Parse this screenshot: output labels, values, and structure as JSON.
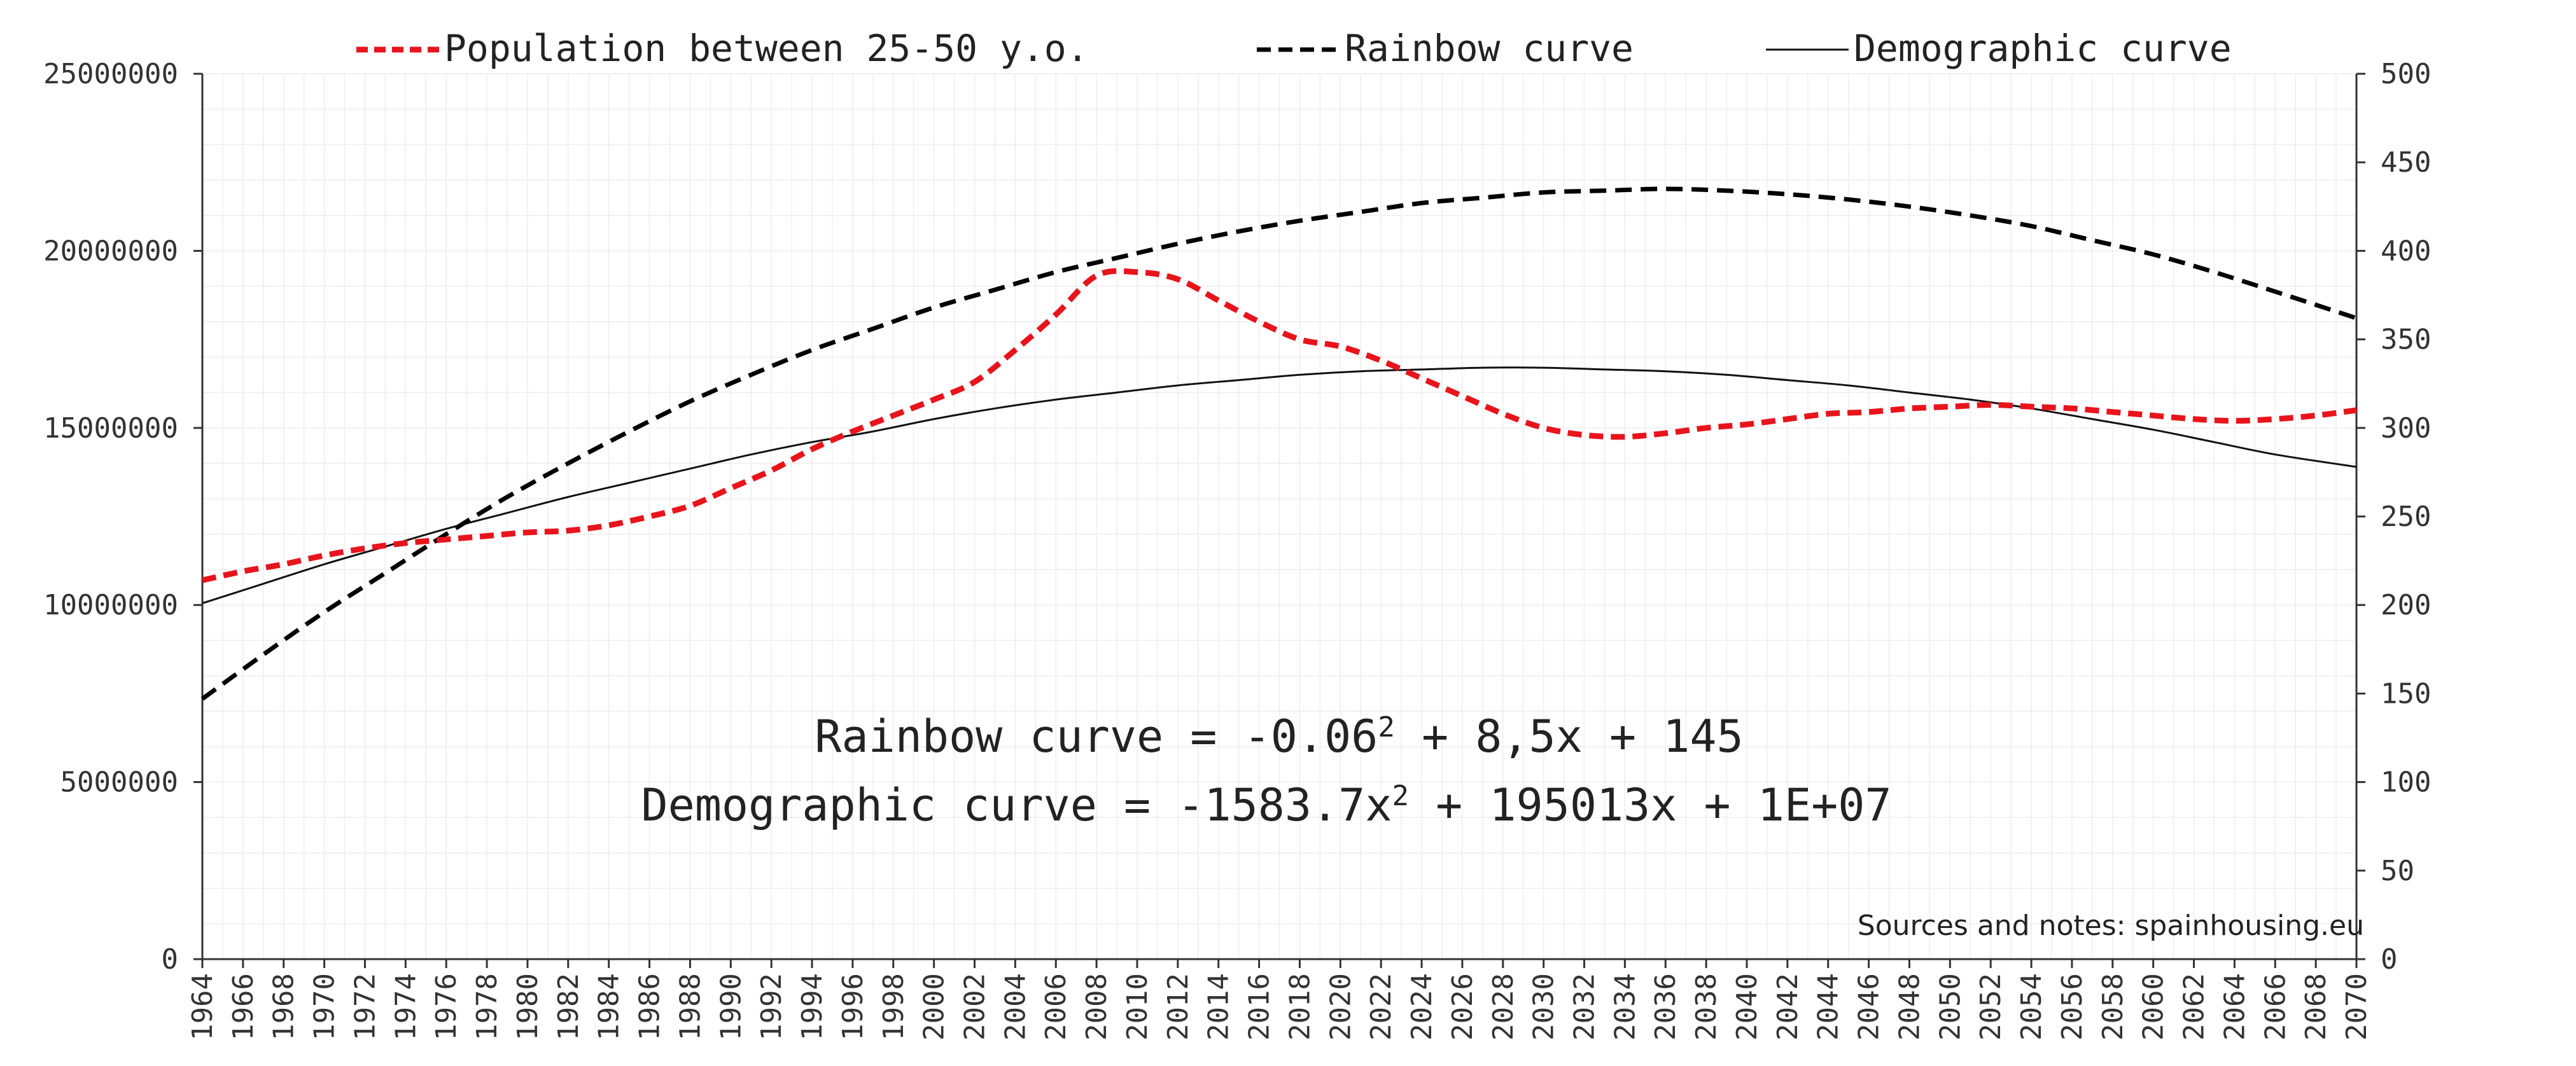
{
  "chart_data": {
    "type": "line",
    "title": "",
    "xlabel": "",
    "ylabel": "",
    "y2label": "",
    "xlim": [
      1964,
      2070
    ],
    "ylim": [
      0,
      25000000
    ],
    "y2lim": [
      0,
      500
    ],
    "grid": true,
    "legend_position": "top",
    "x_ticks": [
      1964,
      1966,
      1968,
      1970,
      1972,
      1974,
      1976,
      1978,
      1980,
      1982,
      1984,
      1986,
      1988,
      1990,
      1992,
      1994,
      1996,
      1998,
      2000,
      2002,
      2004,
      2006,
      2008,
      2010,
      2012,
      2014,
      2016,
      2018,
      2020,
      2022,
      2024,
      2026,
      2028,
      2030,
      2032,
      2034,
      2036,
      2038,
      2040,
      2042,
      2044,
      2046,
      2048,
      2050,
      2052,
      2054,
      2056,
      2058,
      2060,
      2062,
      2064,
      2066,
      2068,
      2070
    ],
    "y_ticks": [
      "0",
      "5000000",
      "10000000",
      "15000000",
      "20000000",
      "25000000"
    ],
    "y2_ticks": [
      "0",
      "50",
      "100",
      "150",
      "200",
      "250",
      "300",
      "350",
      "400",
      "450",
      "500"
    ],
    "series": [
      {
        "name": "Population between 25-50 y.o.",
        "axis": "left",
        "color": "#e8141c",
        "style": "dashed",
        "x": [
          1964,
          1966,
          1968,
          1970,
          1972,
          1974,
          1976,
          1978,
          1980,
          1982,
          1984,
          1986,
          1988,
          1990,
          1992,
          1994,
          1996,
          1998,
          2000,
          2002,
          2004,
          2006,
          2008,
          2010,
          2012,
          2014,
          2016,
          2018,
          2020,
          2022,
          2024,
          2026,
          2028,
          2030,
          2032,
          2034,
          2036,
          2038,
          2040,
          2042,
          2044,
          2046,
          2048,
          2050,
          2052,
          2054,
          2056,
          2058,
          2060,
          2062,
          2064,
          2066,
          2068,
          2070
        ],
        "values": [
          10700000,
          10950000,
          11150000,
          11400000,
          11600000,
          11750000,
          11850000,
          11950000,
          12050000,
          12100000,
          12250000,
          12500000,
          12800000,
          13300000,
          13800000,
          14400000,
          14900000,
          15350000,
          15800000,
          16300000,
          17200000,
          18200000,
          19300000,
          19400000,
          19200000,
          18600000,
          18000000,
          17500000,
          17300000,
          16900000,
          16400000,
          15900000,
          15400000,
          15000000,
          14800000,
          14750000,
          14850000,
          15000000,
          15100000,
          15250000,
          15400000,
          15450000,
          15550000,
          15600000,
          15650000,
          15600000,
          15550000,
          15450000,
          15350000,
          15250000,
          15200000,
          15250000,
          15350000,
          15500000
        ]
      },
      {
        "name": "Rainbow curve",
        "axis": "right",
        "color": "#000000",
        "style": "dashed",
        "x": [
          1964,
          1967,
          1970,
          1973,
          1976,
          1979,
          1982,
          1985,
          1988,
          1991,
          1994,
          1997,
          2000,
          2003,
          2006,
          2009,
          2012,
          2015,
          2018,
          2021,
          2024,
          2027,
          2030,
          2033,
          2036,
          2039,
          2042,
          2045,
          2048,
          2051,
          2054,
          2057,
          2060,
          2063,
          2066,
          2070
        ],
        "values": [
          147,
          172,
          196,
          218,
          240,
          261,
          280,
          298,
          315,
          330,
          344,
          356,
          368,
          378,
          388,
          396,
          404,
          411,
          417,
          422,
          427,
          430,
          433,
          434,
          435,
          434,
          432,
          429,
          425,
          420,
          414,
          406,
          398,
          388,
          377,
          362
        ]
      },
      {
        "name": "Demographic curve",
        "axis": "left",
        "color": "#111111",
        "style": "solid",
        "x": [
          1964,
          1967,
          1970,
          1973,
          1976,
          1979,
          1982,
          1985,
          1988,
          1991,
          1994,
          1997,
          2000,
          2003,
          2006,
          2009,
          2012,
          2015,
          2018,
          2021,
          2024,
          2027,
          2030,
          2033,
          2036,
          2039,
          2042,
          2045,
          2048,
          2051,
          2054,
          2057,
          2060,
          2063,
          2066,
          2070
        ],
        "values": [
          10050000,
          10600000,
          11150000,
          11650000,
          12150000,
          12600000,
          13050000,
          13450000,
          13850000,
          14250000,
          14600000,
          14900000,
          15250000,
          15550000,
          15800000,
          16000000,
          16200000,
          16350000,
          16500000,
          16600000,
          16650000,
          16700000,
          16700000,
          16650000,
          16600000,
          16500000,
          16350000,
          16200000,
          16000000,
          15800000,
          15550000,
          15250000,
          14950000,
          14600000,
          14250000,
          13900000
        ]
      }
    ],
    "annotations": {
      "equation_rainbow": "Rainbow curve = -0.06",
      "equation_rainbow_sup": "2",
      "equation_rainbow_tail": " + 8,5x + 145",
      "equation_demographic": "Demographic curve = -1583.7x",
      "equation_demographic_sup": "2",
      "equation_demographic_tail": " + 195013x + 1E+07",
      "source": "Sources and notes: spainhousing.eu"
    }
  }
}
